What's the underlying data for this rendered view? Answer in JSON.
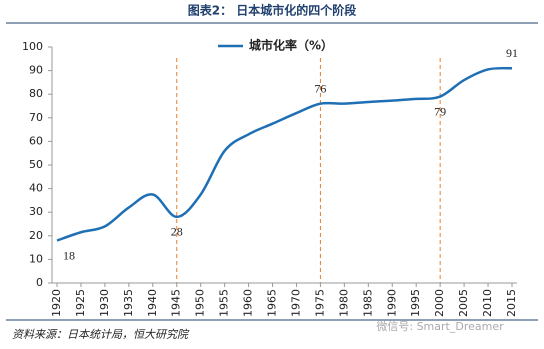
{
  "chart_data": {
    "type": "line",
    "title": "图表2：  日本城市化的四个阶段",
    "source": "资料来源：日本统计局，恒大研究院",
    "watermark": "微信号: Smart_Dreamer",
    "x": [
      1920,
      1925,
      1930,
      1935,
      1940,
      1945,
      1950,
      1955,
      1960,
      1965,
      1970,
      1975,
      1980,
      1985,
      1990,
      1995,
      2000,
      2005,
      2010,
      2015
    ],
    "series": [
      {
        "name": "城市化率（%）",
        "color": "#1f6fb5",
        "values": [
          18,
          21.5,
          24,
          32,
          37.5,
          28,
          37.5,
          56,
          63,
          67.5,
          72,
          76,
          76,
          76.7,
          77.3,
          78,
          79,
          86,
          90.5,
          91
        ],
        "value_labels": [
          "18",
          null,
          null,
          null,
          null,
          "28",
          null,
          null,
          null,
          null,
          null,
          "76",
          null,
          null,
          null,
          null,
          "79",
          null,
          null,
          "91"
        ]
      }
    ],
    "phase_dividers": [
      1945,
      1975,
      2000
    ],
    "divider_color": "#e87d2e",
    "xlim": [
      1920,
      2015
    ],
    "xticks": [
      1920,
      1925,
      1930,
      1935,
      1940,
      1945,
      1950,
      1955,
      1960,
      1965,
      1970,
      1975,
      1980,
      1985,
      1990,
      1995,
      2000,
      2005,
      2010,
      2015
    ],
    "ylim": [
      0,
      100
    ],
    "yticks": [
      0,
      10,
      20,
      30,
      40,
      50,
      60,
      70,
      80,
      90,
      100
    ],
    "legend": "top"
  }
}
